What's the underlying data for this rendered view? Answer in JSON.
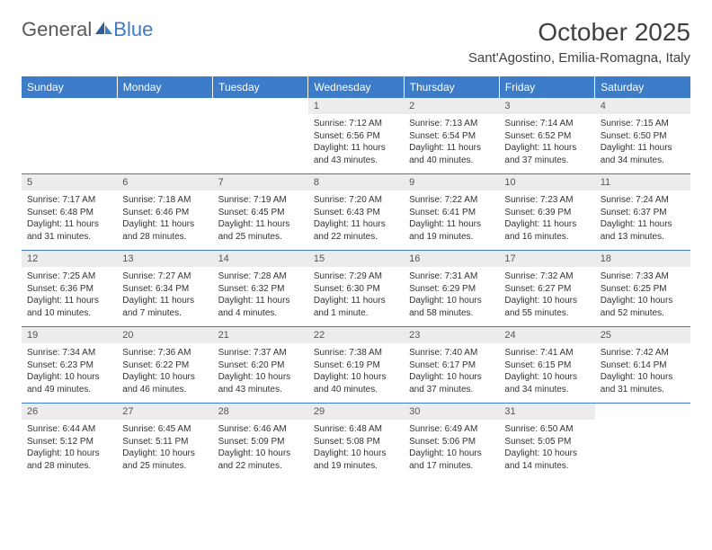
{
  "logo": {
    "text1": "General",
    "text2": "Blue"
  },
  "title": "October 2025",
  "location": "Sant'Agostino, Emilia-Romagna, Italy",
  "colors": {
    "header_bg": "#3d7cc9",
    "header_fg": "#ffffff",
    "daynum_bg": "#ececec",
    "text": "#333333",
    "rule": "#3d7cc9"
  },
  "daysOfWeek": [
    "Sunday",
    "Monday",
    "Tuesday",
    "Wednesday",
    "Thursday",
    "Friday",
    "Saturday"
  ],
  "weeks": [
    [
      null,
      null,
      null,
      {
        "n": "1",
        "sr": "7:12 AM",
        "ss": "6:56 PM",
        "dl": "11 hours and 43 minutes."
      },
      {
        "n": "2",
        "sr": "7:13 AM",
        "ss": "6:54 PM",
        "dl": "11 hours and 40 minutes."
      },
      {
        "n": "3",
        "sr": "7:14 AM",
        "ss": "6:52 PM",
        "dl": "11 hours and 37 minutes."
      },
      {
        "n": "4",
        "sr": "7:15 AM",
        "ss": "6:50 PM",
        "dl": "11 hours and 34 minutes."
      }
    ],
    [
      {
        "n": "5",
        "sr": "7:17 AM",
        "ss": "6:48 PM",
        "dl": "11 hours and 31 minutes."
      },
      {
        "n": "6",
        "sr": "7:18 AM",
        "ss": "6:46 PM",
        "dl": "11 hours and 28 minutes."
      },
      {
        "n": "7",
        "sr": "7:19 AM",
        "ss": "6:45 PM",
        "dl": "11 hours and 25 minutes."
      },
      {
        "n": "8",
        "sr": "7:20 AM",
        "ss": "6:43 PM",
        "dl": "11 hours and 22 minutes."
      },
      {
        "n": "9",
        "sr": "7:22 AM",
        "ss": "6:41 PM",
        "dl": "11 hours and 19 minutes."
      },
      {
        "n": "10",
        "sr": "7:23 AM",
        "ss": "6:39 PM",
        "dl": "11 hours and 16 minutes."
      },
      {
        "n": "11",
        "sr": "7:24 AM",
        "ss": "6:37 PM",
        "dl": "11 hours and 13 minutes."
      }
    ],
    [
      {
        "n": "12",
        "sr": "7:25 AM",
        "ss": "6:36 PM",
        "dl": "11 hours and 10 minutes."
      },
      {
        "n": "13",
        "sr": "7:27 AM",
        "ss": "6:34 PM",
        "dl": "11 hours and 7 minutes."
      },
      {
        "n": "14",
        "sr": "7:28 AM",
        "ss": "6:32 PM",
        "dl": "11 hours and 4 minutes."
      },
      {
        "n": "15",
        "sr": "7:29 AM",
        "ss": "6:30 PM",
        "dl": "11 hours and 1 minute."
      },
      {
        "n": "16",
        "sr": "7:31 AM",
        "ss": "6:29 PM",
        "dl": "10 hours and 58 minutes."
      },
      {
        "n": "17",
        "sr": "7:32 AM",
        "ss": "6:27 PM",
        "dl": "10 hours and 55 minutes."
      },
      {
        "n": "18",
        "sr": "7:33 AM",
        "ss": "6:25 PM",
        "dl": "10 hours and 52 minutes."
      }
    ],
    [
      {
        "n": "19",
        "sr": "7:34 AM",
        "ss": "6:23 PM",
        "dl": "10 hours and 49 minutes."
      },
      {
        "n": "20",
        "sr": "7:36 AM",
        "ss": "6:22 PM",
        "dl": "10 hours and 46 minutes."
      },
      {
        "n": "21",
        "sr": "7:37 AM",
        "ss": "6:20 PM",
        "dl": "10 hours and 43 minutes."
      },
      {
        "n": "22",
        "sr": "7:38 AM",
        "ss": "6:19 PM",
        "dl": "10 hours and 40 minutes."
      },
      {
        "n": "23",
        "sr": "7:40 AM",
        "ss": "6:17 PM",
        "dl": "10 hours and 37 minutes."
      },
      {
        "n": "24",
        "sr": "7:41 AM",
        "ss": "6:15 PM",
        "dl": "10 hours and 34 minutes."
      },
      {
        "n": "25",
        "sr": "7:42 AM",
        "ss": "6:14 PM",
        "dl": "10 hours and 31 minutes."
      }
    ],
    [
      {
        "n": "26",
        "sr": "6:44 AM",
        "ss": "5:12 PM",
        "dl": "10 hours and 28 minutes."
      },
      {
        "n": "27",
        "sr": "6:45 AM",
        "ss": "5:11 PM",
        "dl": "10 hours and 25 minutes."
      },
      {
        "n": "28",
        "sr": "6:46 AM",
        "ss": "5:09 PM",
        "dl": "10 hours and 22 minutes."
      },
      {
        "n": "29",
        "sr": "6:48 AM",
        "ss": "5:08 PM",
        "dl": "10 hours and 19 minutes."
      },
      {
        "n": "30",
        "sr": "6:49 AM",
        "ss": "5:06 PM",
        "dl": "10 hours and 17 minutes."
      },
      {
        "n": "31",
        "sr": "6:50 AM",
        "ss": "5:05 PM",
        "dl": "10 hours and 14 minutes."
      },
      null
    ]
  ],
  "labels": {
    "sunrise": "Sunrise:",
    "sunset": "Sunset:",
    "daylight": "Daylight:"
  }
}
